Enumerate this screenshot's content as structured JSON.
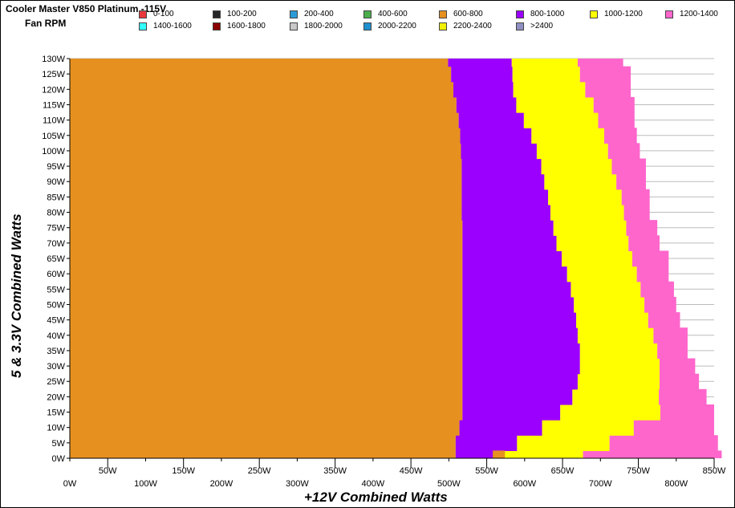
{
  "header": {
    "title": "Cooler Master V850 Platinum -115V",
    "subtitle": "Fan RPM"
  },
  "chart_data": {
    "type": "heatmap",
    "title": "Cooler Master V850 Platinum -115V",
    "subtitle": "Fan RPM",
    "xlabel": "+12V Combined Watts",
    "ylabel": "5 & 3.3V Combined Watts",
    "xlim": [
      0,
      850
    ],
    "ylim": [
      0,
      130
    ],
    "x_tick_labels": [
      "0W",
      "50W",
      "100W",
      "150W",
      "200W",
      "250W",
      "300W",
      "350W",
      "400W",
      "450W",
      "500W",
      "550W",
      "600W",
      "650W",
      "700W",
      "750W",
      "800W",
      "850W"
    ],
    "y_tick_labels": [
      "0W",
      "5W",
      "10W",
      "15W",
      "20W",
      "25W",
      "30W",
      "35W",
      "40W",
      "45W",
      "50W",
      "55W",
      "60W",
      "65W",
      "70W",
      "75W",
      "80W",
      "85W",
      "90W",
      "95W",
      "100W",
      "105W",
      "110W",
      "115W",
      "120W",
      "125W",
      "130W"
    ],
    "grid": true,
    "legend_position": "top",
    "legend": [
      {
        "label": "0-100",
        "color": "#e8383d"
      },
      {
        "label": "100-200",
        "color": "#262626"
      },
      {
        "label": "200-400",
        "color": "#2d9bd7"
      },
      {
        "label": "400-600",
        "color": "#4cae4c"
      },
      {
        "label": "600-800",
        "color": "#e69020"
      },
      {
        "label": "800-1000",
        "color": "#9b00ff"
      },
      {
        "label": "1000-1200",
        "color": "#ffff00"
      },
      {
        "label": "1200-1400",
        "color": "#ff66cc"
      },
      {
        "label": "1400-1600",
        "color": "#33ffff"
      },
      {
        "label": "1600-1800",
        "color": "#8b0000"
      },
      {
        "label": "1800-2000",
        "color": "#c8c8c8"
      },
      {
        "label": "2000-2200",
        "color": "#1f8fd0"
      },
      {
        "label": "2200-2400",
        "color": "#f0f000"
      },
      {
        "label": ">2400",
        "color": "#9090c0"
      }
    ],
    "band_colors": [
      "#e69020",
      "#9b00ff",
      "#ffff00",
      "#ff66cc"
    ],
    "band_ranges": [
      "600-800",
      "800-1000",
      "1000-1200",
      "1200-1400"
    ],
    "y_rows": [
      0,
      5,
      10,
      15,
      20,
      25,
      30,
      35,
      40,
      45,
      50,
      55,
      60,
      65,
      70,
      75,
      80,
      85,
      90,
      95,
      100,
      105,
      110,
      115,
      120,
      125,
      130
    ],
    "boundary_600_800_upper_x": [
      509,
      509,
      514,
      518,
      518,
      518,
      518,
      518,
      518,
      518,
      518,
      518,
      518,
      518,
      518,
      518,
      517,
      517,
      517,
      517,
      516,
      515,
      513,
      510,
      506,
      503,
      499
    ],
    "boundary_800_1000_upper_x": [
      563,
      590,
      623,
      647,
      663,
      670,
      673,
      673,
      670,
      668,
      665,
      661,
      656,
      649,
      642,
      638,
      634,
      631,
      626,
      622,
      616,
      609,
      599,
      589,
      585,
      584,
      583
    ],
    "boundary_1000_1200_upper_x": [
      677,
      712,
      744,
      779,
      777,
      778,
      778,
      775,
      770,
      763,
      758,
      753,
      748,
      742,
      737,
      734,
      731,
      728,
      721,
      715,
      710,
      705,
      697,
      691,
      680,
      673,
      670
    ],
    "boundary_1200_1400_upper_x": [
      860,
      855,
      850,
      850,
      840,
      830,
      825,
      815,
      815,
      805,
      800,
      797,
      790,
      790,
      778,
      775,
      765,
      765,
      760,
      760,
      752,
      748,
      745,
      745,
      740,
      740,
      730
    ],
    "low_row_600_800_pocket": [
      558,
      574
    ]
  }
}
